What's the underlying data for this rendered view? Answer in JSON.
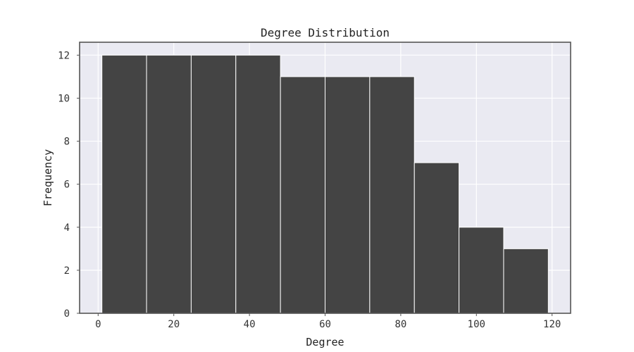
{
  "chart_data": {
    "type": "bar",
    "title": "Degree Distribution",
    "xlabel": "Degree",
    "ylabel": "Frequency",
    "bins": [
      {
        "start": 1,
        "end": 12.8,
        "count": 12
      },
      {
        "start": 12.8,
        "end": 24.6,
        "count": 12
      },
      {
        "start": 24.6,
        "end": 36.4,
        "count": 12
      },
      {
        "start": 36.4,
        "end": 48.2,
        "count": 12
      },
      {
        "start": 48.2,
        "end": 60.0,
        "count": 11
      },
      {
        "start": 60.0,
        "end": 71.8,
        "count": 11
      },
      {
        "start": 71.8,
        "end": 83.6,
        "count": 11
      },
      {
        "start": 83.6,
        "end": 95.4,
        "count": 7
      },
      {
        "start": 95.4,
        "end": 107.2,
        "count": 4
      },
      {
        "start": 107.2,
        "end": 119,
        "count": 3
      }
    ],
    "xlim": [
      -4.9,
      124.9
    ],
    "ylim": [
      0,
      12.6
    ],
    "xticks": [
      0,
      20,
      40,
      60,
      80,
      100,
      120
    ],
    "yticks": [
      0,
      2,
      4,
      6,
      8,
      10,
      12
    ],
    "grid": true,
    "colors": {
      "bar": "#444444",
      "bar_edge": "#ffffff",
      "plot_background": "#eaeaf2",
      "grid": "#ffffff",
      "frame": "#555555"
    }
  }
}
